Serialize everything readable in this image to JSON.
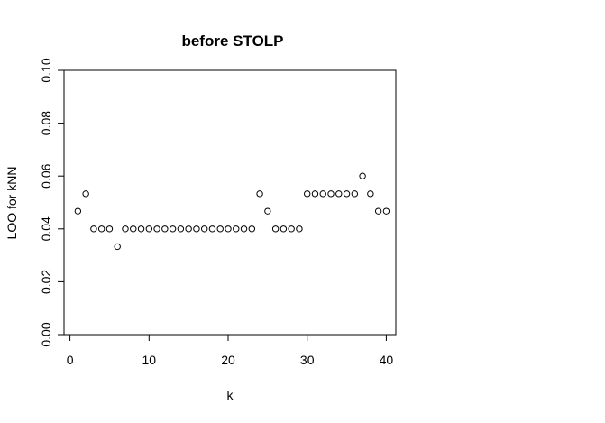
{
  "chart_data": {
    "type": "scatter",
    "title": "before STOLP",
    "xlabel": "k",
    "ylabel": "LOO for kNN",
    "xlim": [
      0,
      40
    ],
    "ylim": [
      0,
      0.1
    ],
    "xticks": [
      0,
      10,
      20,
      30,
      40
    ],
    "xtick_labels": [
      "0",
      "10",
      "20",
      "30",
      "40"
    ],
    "yticks": [
      0,
      0.02,
      0.04,
      0.06,
      0.08,
      0.1
    ],
    "ytick_labels": [
      "0.00",
      "0.02",
      "0.04",
      "0.06",
      "0.08",
      "0.10"
    ],
    "grid": false,
    "marker": "open-circle",
    "series": [
      {
        "x": [
          1,
          2,
          3,
          4,
          5,
          6,
          7,
          8,
          9,
          10,
          11,
          12,
          13,
          14,
          15,
          16,
          17,
          18,
          19,
          20,
          21,
          22,
          23,
          24,
          25,
          26,
          27,
          28,
          29,
          30,
          31,
          32,
          33,
          34,
          35,
          36,
          37,
          38,
          39,
          40
        ],
        "y": [
          0.0467,
          0.0533,
          0.04,
          0.04,
          0.04,
          0.0333,
          0.04,
          0.04,
          0.04,
          0.04,
          0.04,
          0.04,
          0.04,
          0.04,
          0.04,
          0.04,
          0.04,
          0.04,
          0.04,
          0.04,
          0.04,
          0.04,
          0.04,
          0.0533,
          0.0467,
          0.04,
          0.04,
          0.04,
          0.04,
          0.0533,
          0.0533,
          0.0533,
          0.0533,
          0.0533,
          0.0533,
          0.0533,
          0.06,
          0.0533,
          0.0467,
          0.0467
        ]
      }
    ]
  }
}
